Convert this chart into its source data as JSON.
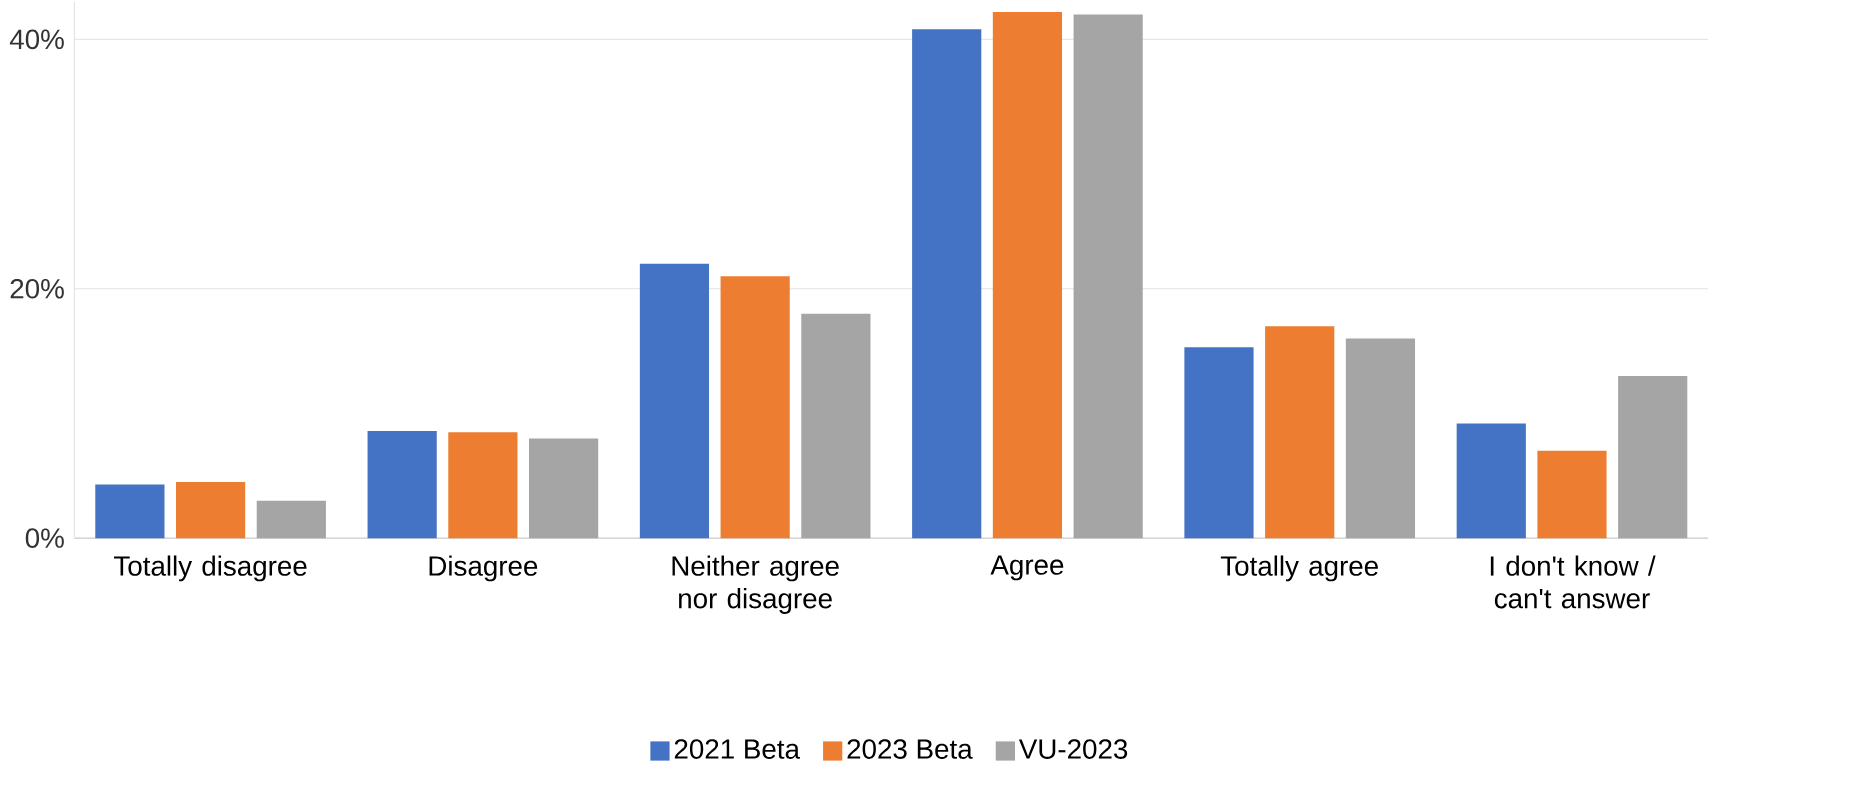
{
  "chart_data": {
    "type": "bar",
    "categories": [
      "Totally disagree",
      "Disagree",
      "Neither agree nor disagree",
      "Agree",
      "Totally agree",
      "I don't know / can't answer"
    ],
    "series": [
      {
        "name": "2021 Beta",
        "color": "#4472c4",
        "values": [
          4.3,
          8.6,
          22,
          40.8,
          15.3,
          9.2
        ]
      },
      {
        "name": "2023 Beta",
        "color": "#ed7d31",
        "values": [
          4.5,
          8.5,
          21,
          42.2,
          17,
          7
        ]
      },
      {
        "name": "VU-2023",
        "color": "#a5a5a5",
        "values": [
          3,
          8,
          18,
          42,
          16,
          13
        ]
      }
    ],
    "ylim": [
      0,
      43
    ],
    "yticks": [
      {
        "value": 0,
        "label": "0%"
      },
      {
        "value": 20,
        "label": "20%"
      },
      {
        "value": 40,
        "label": "40%"
      }
    ],
    "grid": "y",
    "legend": "bottom"
  }
}
